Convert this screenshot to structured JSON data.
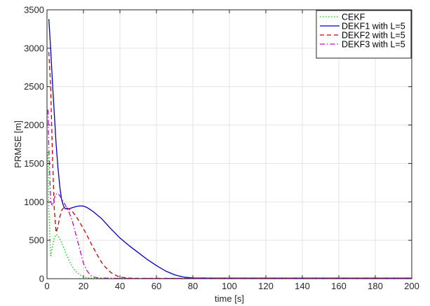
{
  "chart_data": {
    "type": "line",
    "xlabel": "time [s]",
    "ylabel": "PRMSE [m]",
    "xlim": [
      0,
      200
    ],
    "ylim": [
      0,
      3500
    ],
    "xticks": [
      0,
      20,
      40,
      60,
      80,
      100,
      120,
      140,
      160,
      180,
      200
    ],
    "yticks": [
      0,
      500,
      1000,
      1500,
      2000,
      2500,
      3000,
      3500
    ],
    "grid": true,
    "legend_position": "top-right",
    "series": [
      {
        "name": "CEKF",
        "color": "#00cc00",
        "style": "dotted",
        "x": [
          0.5,
          1,
          2,
          3,
          4,
          5,
          6,
          7,
          8,
          9,
          10,
          12,
          14,
          16,
          18,
          20,
          22,
          25,
          30,
          40,
          60,
          80,
          100,
          150,
          200
        ],
        "y": [
          1650,
          900,
          300,
          420,
          530,
          575,
          560,
          520,
          470,
          410,
          350,
          240,
          150,
          90,
          50,
          25,
          12,
          6,
          4,
          3,
          3,
          3,
          3,
          3,
          3
        ]
      },
      {
        "name": "DEKF1 with L=5",
        "color": "#0000cc",
        "style": "solid",
        "x": [
          1,
          2,
          3,
          4,
          5,
          6,
          7,
          8,
          9,
          10,
          12,
          14,
          16,
          18,
          20,
          22,
          25,
          30,
          35,
          40,
          45,
          50,
          55,
          60,
          65,
          70,
          75,
          80,
          90,
          100,
          150,
          200
        ],
        "y": [
          3380,
          3000,
          2550,
          2150,
          1750,
          1450,
          1200,
          1030,
          950,
          910,
          910,
          925,
          940,
          948,
          945,
          925,
          880,
          780,
          650,
          530,
          430,
          340,
          250,
          170,
          100,
          50,
          20,
          10,
          8,
          8,
          8,
          8
        ]
      },
      {
        "name": "DEKF2 with L=5",
        "color": "#cc0000",
        "style": "dashed",
        "x": [
          1,
          2,
          3,
          4,
          5,
          6,
          7,
          8,
          9,
          10,
          12,
          14,
          16,
          18,
          20,
          22,
          25,
          28,
          30,
          32,
          35,
          38,
          40,
          45,
          50,
          60,
          80,
          100,
          200
        ],
        "y": [
          2950,
          2500,
          1600,
          900,
          600,
          680,
          800,
          890,
          920,
          930,
          910,
          870,
          810,
          730,
          650,
          560,
          420,
          290,
          210,
          150,
          80,
          40,
          20,
          8,
          5,
          5,
          5,
          5,
          5
        ]
      },
      {
        "name": "DEKF3 with L=5",
        "color": "#cc00cc",
        "style": "dashdot",
        "x": [
          0.5,
          1,
          2,
          3,
          4,
          5,
          6,
          7,
          8,
          10,
          12,
          14,
          16,
          18,
          20,
          22,
          24,
          26,
          28,
          30,
          35,
          40,
          50,
          60,
          80,
          100,
          200
        ],
        "y": [
          2200,
          1700,
          1000,
          950,
          1050,
          1100,
          1110,
          1080,
          1040,
          960,
          870,
          740,
          560,
          380,
          200,
          100,
          40,
          20,
          10,
          8,
          6,
          5,
          5,
          5,
          5,
          5,
          5
        ]
      }
    ]
  }
}
